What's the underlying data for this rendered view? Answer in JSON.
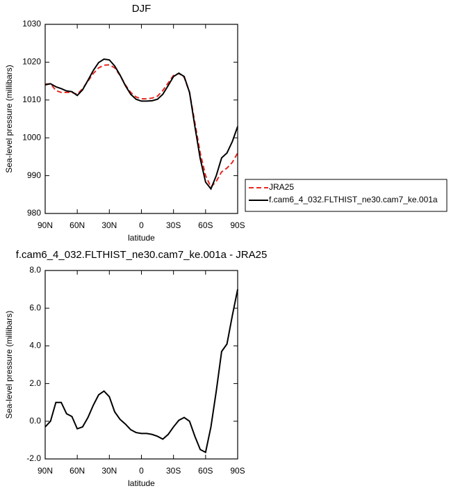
{
  "chart_data": [
    {
      "type": "line",
      "title": "DJF",
      "xlabel": "latitude",
      "ylabel": "Sea-level pressure (millibars)",
      "x": [
        90,
        85,
        80,
        75,
        70,
        65,
        60,
        55,
        50,
        45,
        40,
        35,
        30,
        25,
        20,
        15,
        10,
        5,
        0,
        -5,
        -10,
        -15,
        -20,
        -25,
        -30,
        -35,
        -40,
        -45,
        -50,
        -55,
        -60,
        -65,
        -70,
        -75,
        -80,
        -85,
        -90
      ],
      "series": [
        {
          "name": "JRA25",
          "color": "#e8261f",
          "line_style": "dashed",
          "values": [
            1014.2,
            1014.3,
            1012.5,
            1012,
            1012,
            1012,
            1011.5,
            1013,
            1015,
            1017,
            1018.5,
            1019.2,
            1019.3,
            1018.5,
            1016.5,
            1014,
            1012,
            1010.8,
            1010.3,
            1010.3,
            1010.5,
            1011,
            1012.5,
            1014.5,
            1016.5,
            1017,
            1016,
            1012,
            1004,
            996,
            990,
            987,
            988.5,
            991,
            992,
            993.5,
            996
          ]
        },
        {
          "name": "f.cam6_4_032.FLTHIST_ne30.cam7_ke.001a",
          "color": "#000000",
          "line_style": "solid",
          "values": [
            1014,
            1014.3,
            1013.5,
            1013,
            1012.4,
            1012.2,
            1011.2,
            1012.7,
            1015.2,
            1017.8,
            1019.9,
            1020.8,
            1020.6,
            1019,
            1016.6,
            1013.8,
            1011.5,
            1010.2,
            1009.7,
            1009.7,
            1009.8,
            1010.2,
            1011.5,
            1013.8,
            1016.2,
            1017.1,
            1016.2,
            1012,
            1003,
            994.5,
            988.3,
            986.5,
            990,
            994.7,
            996,
            999,
            1003
          ]
        }
      ],
      "xlim": [
        90,
        -90
      ],
      "xticks": [
        {
          "value": 90,
          "label": "90N"
        },
        {
          "value": 60,
          "label": "60N"
        },
        {
          "value": 30,
          "label": "30N"
        },
        0,
        {
          "value": -30,
          "label": "30S"
        },
        {
          "value": -60,
          "label": "60S"
        },
        {
          "value": -90,
          "label": "90S"
        }
      ],
      "ylim": [
        980,
        1030
      ],
      "yticks": [
        980,
        990,
        1000,
        1010,
        1020,
        1030
      ],
      "legend": "right"
    },
    {
      "type": "line",
      "title": "f.cam6_4_032.FLTHIST_ne30.cam7_ke.001a - JRA25",
      "xlabel": "latitude",
      "ylabel": "Sea-level pressure (millibars)",
      "x": [
        90,
        85,
        80,
        75,
        70,
        65,
        60,
        55,
        50,
        45,
        40,
        35,
        30,
        25,
        20,
        15,
        10,
        5,
        0,
        -5,
        -10,
        -15,
        -20,
        -25,
        -30,
        -35,
        -40,
        -45,
        -50,
        -55,
        -60,
        -65,
        -70,
        -75,
        -80,
        -85,
        -90
      ],
      "color": "#000000",
      "values": [
        -0.3,
        0.0,
        1.0,
        1.0,
        0.4,
        0.25,
        -0.4,
        -0.3,
        0.2,
        0.85,
        1.4,
        1.6,
        1.3,
        0.5,
        0.1,
        -0.15,
        -0.45,
        -0.6,
        -0.65,
        -0.65,
        -0.7,
        -0.8,
        -0.95,
        -0.7,
        -0.3,
        0.05,
        0.2,
        0.0,
        -0.8,
        -1.5,
        -1.65,
        -0.3,
        1.6,
        3.7,
        4.1,
        5.6,
        7.0
      ],
      "xlim": [
        90,
        -90
      ],
      "xticks": [
        {
          "value": 90,
          "label": "90N"
        },
        {
          "value": 60,
          "label": "60N"
        },
        {
          "value": 30,
          "label": "30N"
        },
        0,
        {
          "value": -30,
          "label": "30S"
        },
        {
          "value": -60,
          "label": "60S"
        },
        {
          "value": -90,
          "label": "90S"
        }
      ],
      "ylim": [
        -2,
        8
      ],
      "yticks": [
        {
          "value": -2,
          "label": "-2.0"
        },
        {
          "value": 0,
          "label": "0.0"
        },
        {
          "value": 2,
          "label": "2.0"
        },
        {
          "value": 4,
          "label": "4.0"
        },
        {
          "value": 6,
          "label": "6.0"
        },
        {
          "value": 8,
          "label": "8.0"
        }
      ]
    }
  ]
}
